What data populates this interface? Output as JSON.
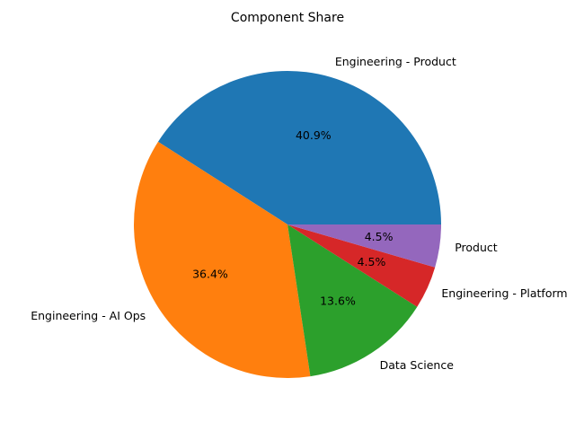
{
  "chart_data": {
    "type": "pie",
    "title": "Component Share",
    "slices": [
      {
        "label": "Engineering - Product",
        "value": 40.9,
        "pct_label": "40.9%",
        "color": "#1f77b4"
      },
      {
        "label": "Engineering - AI Ops",
        "value": 36.4,
        "pct_label": "36.4%",
        "color": "#ff7f0e"
      },
      {
        "label": "Data Science",
        "value": 13.6,
        "pct_label": "13.6%",
        "color": "#2ca02c"
      },
      {
        "label": "Engineering - Platform",
        "value": 4.5,
        "pct_label": "4.5%",
        "color": "#d62728"
      },
      {
        "label": "Product",
        "value": 4.5,
        "pct_label": "4.5%",
        "color": "#9467bd"
      }
    ],
    "start_angle_deg": 0,
    "direction": "counterclockwise",
    "legend": false
  }
}
